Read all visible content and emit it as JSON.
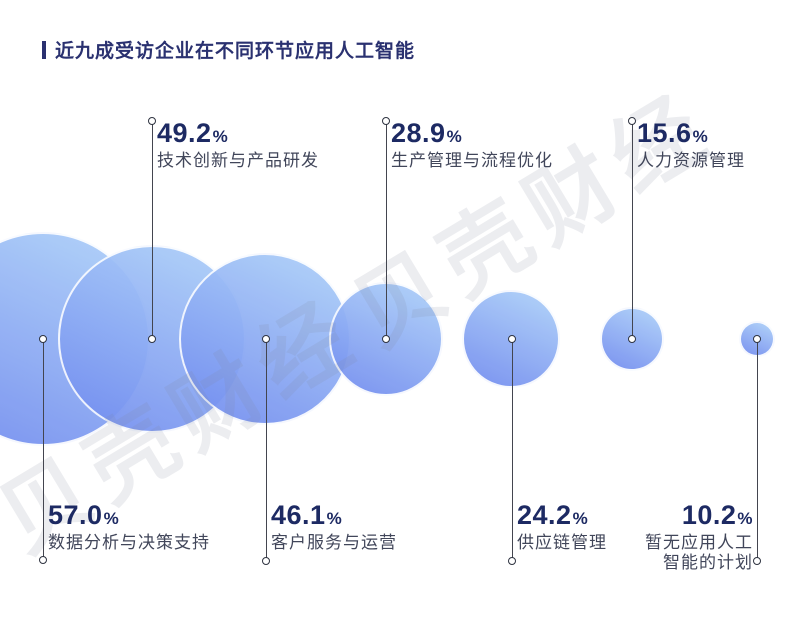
{
  "header": {
    "title": "近九成受访企业在不同环节应用人工智能"
  },
  "watermark": {
    "text": "贝壳财经"
  },
  "colors": {
    "title_navy": "#2a3170",
    "number_navy": "#1d2a63",
    "subtitle_gray": "#41465a",
    "bubble_light": "#a9ccf8",
    "bubble_dark": "#7590f0",
    "connector": "#43454f"
  },
  "chart_data": {
    "type": "bubble",
    "title": "近九成受访企业在不同环节应用人工智能",
    "unit": "%",
    "legend": "none",
    "layout": "bubbles sized by value, aligned horizontally, labels alternate bottom/top",
    "items": [
      {
        "label": "数据分析与决策支持",
        "value": 57.0,
        "value_display": "57.0",
        "label_side": "bottom"
      },
      {
        "label": "技术创新与产品研发",
        "value": 49.2,
        "value_display": "49.2",
        "label_side": "top"
      },
      {
        "label": "客户服务与运营",
        "value": 46.1,
        "value_display": "46.1",
        "label_side": "bottom"
      },
      {
        "label": "生产管理与流程优化",
        "value": 28.9,
        "value_display": "28.9",
        "label_side": "top"
      },
      {
        "label": "供应链管理",
        "value": 24.2,
        "value_display": "24.2",
        "label_side": "bottom"
      },
      {
        "label": "人力资源管理",
        "value": 15.6,
        "value_display": "15.6",
        "label_side": "top"
      },
      {
        "label": "暂无应用人工智能的计划",
        "value": 10.2,
        "value_display": "10.2",
        "label_side": "bottom",
        "label_lines": [
          "暂无应用人工",
          "智能的计划"
        ]
      }
    ]
  }
}
